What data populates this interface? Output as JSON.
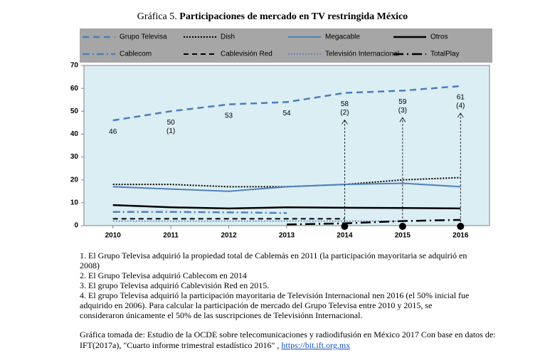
{
  "chart_data": {
    "type": "line",
    "title_prefix": "Gráfica 5.",
    "title": "Participaciones de mercado en TV restringida México",
    "categories": [
      "2010",
      "2011",
      "2012",
      "2013",
      "2014",
      "2015",
      "2016"
    ],
    "ylim": [
      0,
      70
    ],
    "yticks": [
      0,
      10,
      20,
      30,
      40,
      50,
      60,
      70
    ],
    "background": "#dbeef4",
    "series": [
      {
        "name": "Grupo Televisa",
        "color": "#4a7ebb",
        "dash": "9,6",
        "width": 2.5,
        "values": [
          46,
          50,
          53,
          54,
          58,
          59,
          61
        ],
        "value_labels": [
          "46",
          "50",
          "53",
          "54",
          "58",
          "59",
          "61"
        ],
        "notes": [
          null,
          "(1)",
          null,
          null,
          "(2)",
          "(3)",
          "(4)"
        ]
      },
      {
        "name": "Dish",
        "color": "#000000",
        "dash": "2,2",
        "width": 2,
        "values": [
          18,
          18,
          17,
          17,
          18,
          20,
          21
        ]
      },
      {
        "name": "Megacable",
        "color": "#4f81bd",
        "dash": "",
        "width": 2,
        "values": [
          17,
          16,
          15,
          17,
          18,
          18.5,
          17
        ]
      },
      {
        "name": "Otros",
        "color": "#000000",
        "dash": "",
        "width": 2.5,
        "values": [
          9,
          8,
          7.5,
          8,
          7.8,
          7.7,
          7.5
        ]
      },
      {
        "name": "Cablecom",
        "color": "#4f81bd",
        "dash": "10,4,2,4",
        "width": 2.5,
        "values": [
          6,
          6,
          5.8,
          5.5,
          null,
          null,
          null
        ]
      },
      {
        "name": "Cablevisión Red",
        "color": "#000000",
        "dash": "7,5",
        "width": 2,
        "values": [
          3,
          3,
          3,
          3,
          3,
          null,
          null
        ]
      },
      {
        "name": "Televisión Internacional",
        "color": "#4f81bd",
        "dash": "2,2",
        "width": 1.5,
        "values": [
          2,
          2,
          2,
          2,
          2,
          2,
          null
        ]
      },
      {
        "name": "TotalPlay",
        "color": "#000000",
        "dash": "14,5,2,5",
        "width": 2.5,
        "values": [
          null,
          null,
          null,
          0.5,
          1,
          2,
          2.5
        ]
      }
    ],
    "footnotes": [
      "1. El Grupo Televisa adquirió la propiedad total de Cablemás en 2011 (la participación mayoritaria se adquirió en 2008)",
      "2.  El Grupo Televisa adquirió Cablecom en 2014",
      "3. El grupo Televisa adquirió Cablevisión Red en 2015.",
      "4. El grupo Televisa adquirió la participación mayoritaria de Televisión Internacional nen 2016 (el 50% inicial fue adquirido en 2006). Para calcular la participación de mercado del Grupo Televisa entre 2010 y 2015, se consideraron únicamente el 50% de las suscripciones de Televisiónn Internacional."
    ],
    "source": "Gráfica tomada de: Estudio de la OCDE sobre telecomunicaciones y radiodifusión en México 2017 Con base en datos de: IFT(2017a), \"Cuarto informe trimestral estadístico 2016\" , ",
    "source_link": "https://bit.ift.org.mx"
  }
}
